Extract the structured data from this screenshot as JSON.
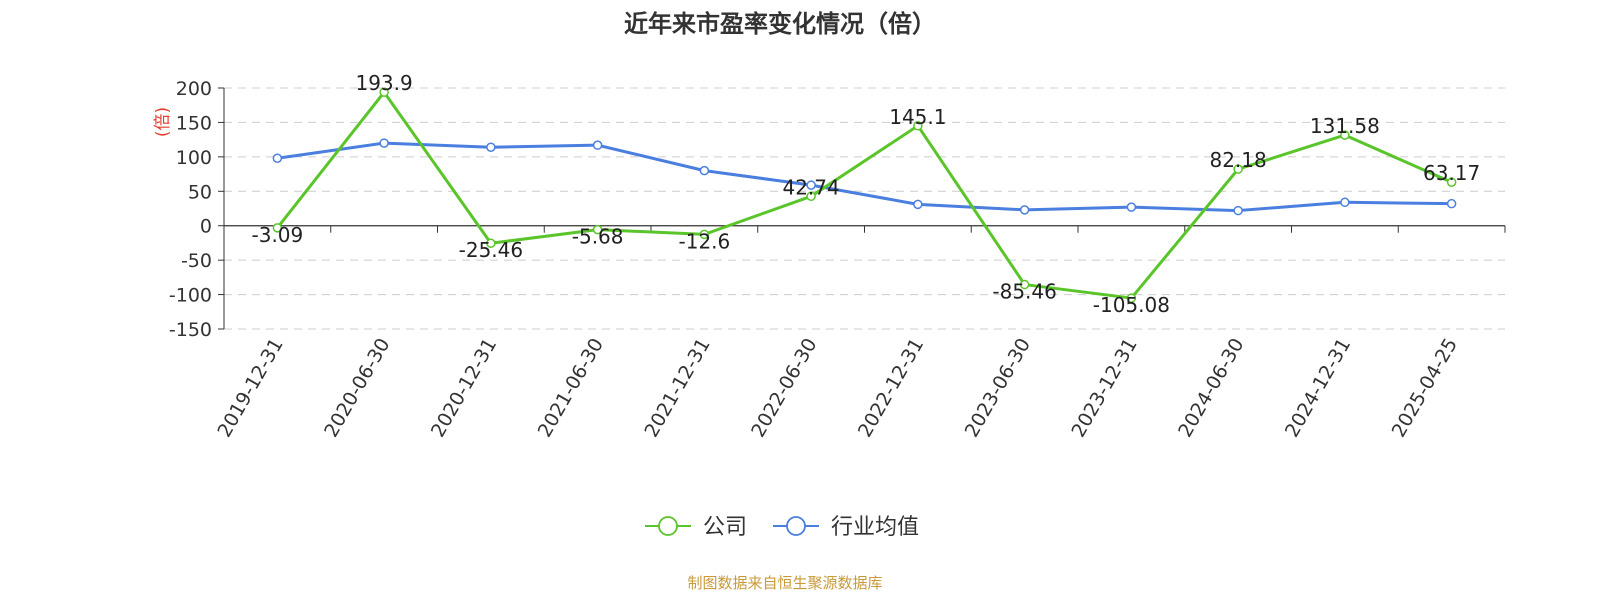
{
  "chart_data": {
    "type": "line",
    "title": "近年来市盈率变化情况（倍）",
    "ylabel": "(倍)",
    "xlabel": "",
    "categories": [
      "2019-12-31",
      "2020-06-30",
      "2020-12-31",
      "2021-06-30",
      "2021-12-31",
      "2022-06-30",
      "2022-12-31",
      "2023-06-30",
      "2023-12-31",
      "2024-06-30",
      "2024-12-31",
      "2025-04-25"
    ],
    "ylim": [
      -150,
      200
    ],
    "yticks": [
      200,
      150,
      100,
      50,
      0,
      -50,
      -100,
      -150
    ],
    "grid": true,
    "legend_position": "bottom-center",
    "series": [
      {
        "name": "公司",
        "color": "#5ac52a",
        "values": [
          -3.09,
          193.9,
          -25.46,
          -5.68,
          -12.6,
          42.74,
          145.1,
          -85.46,
          -105.08,
          82.18,
          131.58,
          63.17
        ],
        "labels": [
          "-3.09",
          "193.9",
          "-25.46",
          "-5.68",
          "-12.6",
          "42.74",
          "145.1",
          "-85.46",
          "-105.08",
          "82.18",
          "131.58",
          "63.17"
        ]
      },
      {
        "name": "行业均值",
        "color": "#4a7fdf",
        "values": [
          98,
          120,
          114,
          117,
          80,
          59,
          31,
          23,
          27,
          22,
          34,
          32
        ]
      }
    ]
  },
  "footer": {
    "source": "制图数据来自恒生聚源数据库"
  },
  "colors": {
    "ylabel": "#e63a2e",
    "footer": "#c99a3a",
    "axis": "#333333",
    "grid": "#cccccc"
  }
}
